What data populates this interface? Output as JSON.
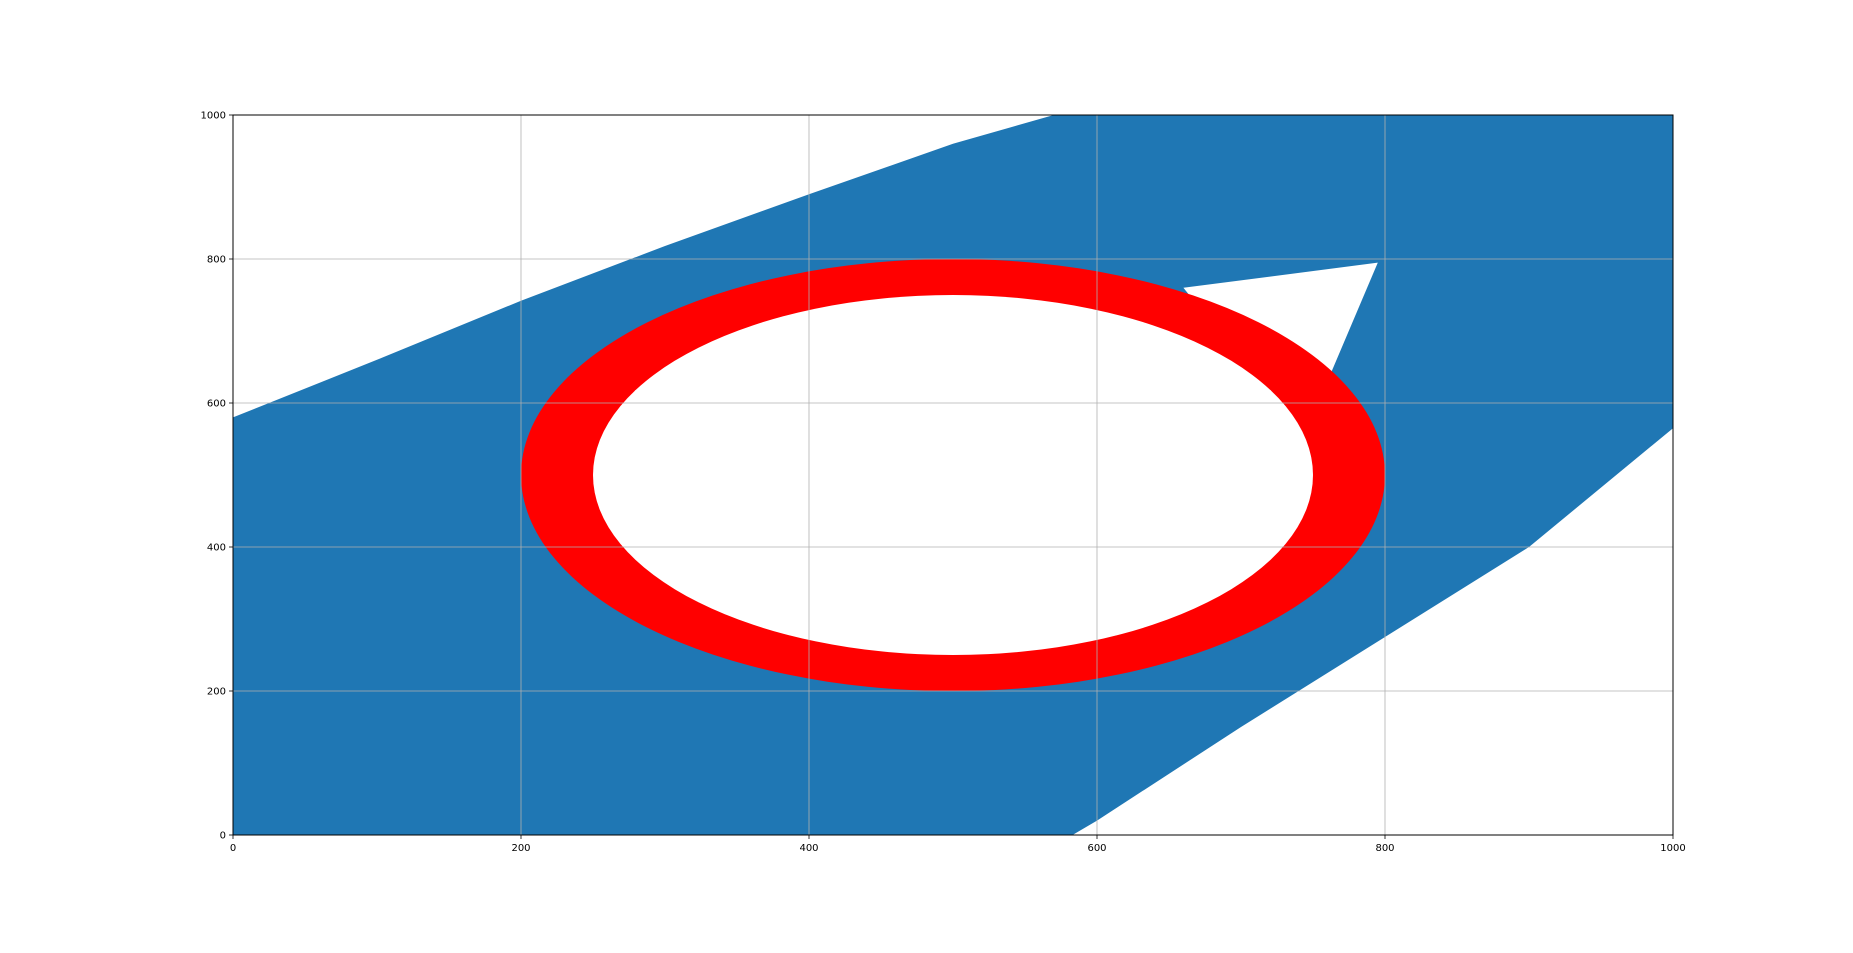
{
  "chart_data": {
    "type": "area",
    "title": "",
    "xlabel": "",
    "ylabel": "",
    "xlim": [
      0,
      1000
    ],
    "ylim": [
      0,
      1000
    ],
    "grid": true,
    "legend": "none",
    "x_ticks": [
      "0",
      "200",
      "400",
      "600",
      "800",
      "1000"
    ],
    "y_ticks": [
      "0",
      "200",
      "400",
      "600",
      "800",
      "1000"
    ],
    "blue_region": {
      "color": "#1f77b4",
      "left_boundary": [
        [
          0,
          0
        ],
        [
          0,
          580
        ],
        [
          100,
          660
        ],
        [
          200,
          742
        ],
        [
          300,
          818
        ],
        [
          400,
          890
        ],
        [
          500,
          960
        ],
        [
          570,
          1000
        ]
      ],
      "top_boundary": [
        [
          570,
          1000
        ],
        [
          1000,
          1000
        ]
      ],
      "right_boundary": [
        [
          1000,
          1000
        ],
        [
          1000,
          565
        ]
      ],
      "lower_boundary": [
        [
          1000,
          565
        ],
        [
          900,
          400
        ],
        [
          800,
          275
        ],
        [
          700,
          150
        ],
        [
          600,
          20
        ],
        [
          583,
          0
        ]
      ]
    },
    "white_notch": {
      "color": "#ffffff",
      "points": [
        [
          660,
          760
        ],
        [
          795,
          795
        ],
        [
          760,
          630
        ],
        [
          700,
          660
        ]
      ]
    },
    "ring": {
      "color": "#ff0000",
      "center": [
        500,
        500
      ],
      "outer_radii": [
        300,
        300
      ],
      "inner_radii": [
        250,
        250
      ],
      "fill_inside": "#ffffff"
    }
  }
}
